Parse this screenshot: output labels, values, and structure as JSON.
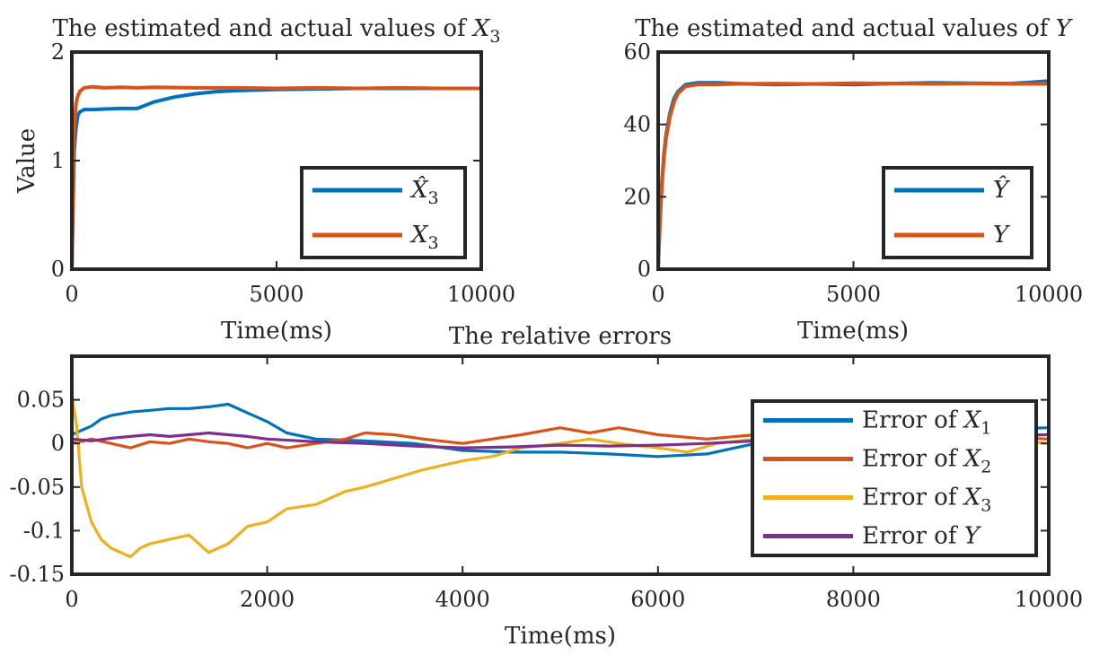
{
  "chart_data": [
    {
      "type": "line",
      "title_text": "The estimated and actual values of ",
      "title_var": "X",
      "title_sub": "3",
      "xlabel": "Time(ms)",
      "ylabel": "Value",
      "xlim": [
        0,
        10000
      ],
      "ylim": [
        0,
        2
      ],
      "xticks": [
        "0",
        "5000",
        "10000"
      ],
      "yticks": [
        "0",
        "1",
        "2"
      ],
      "legend_position": "bottom-right",
      "series": [
        {
          "color": "#0072BD",
          "legend_var": "X̂",
          "legend_sub": "3",
          "x": [
            0,
            30,
            60,
            100,
            150,
            200,
            300,
            500,
            800,
            1200,
            1600,
            2000,
            2500,
            3000,
            3500,
            4000,
            5000,
            6000,
            7000,
            8000,
            9000,
            10000
          ],
          "y": [
            0,
            0.6,
            1.1,
            1.3,
            1.42,
            1.45,
            1.47,
            1.47,
            1.475,
            1.48,
            1.48,
            1.54,
            1.585,
            1.615,
            1.635,
            1.645,
            1.655,
            1.66,
            1.665,
            1.665,
            1.665,
            1.665
          ]
        },
        {
          "color": "#D95319",
          "legend_var": "X",
          "legend_sub": "3",
          "x": [
            0,
            30,
            60,
            100,
            150,
            200,
            300,
            500,
            800,
            1200,
            1600,
            2000,
            3000,
            4000,
            5000,
            6000,
            7000,
            8000,
            9000,
            10000
          ],
          "y": [
            0,
            0.8,
            1.3,
            1.52,
            1.6,
            1.64,
            1.67,
            1.68,
            1.67,
            1.675,
            1.67,
            1.675,
            1.67,
            1.67,
            1.665,
            1.67,
            1.665,
            1.67,
            1.665,
            1.665
          ]
        }
      ]
    },
    {
      "type": "line",
      "title_text": "The estimated and actual values of ",
      "title_var": "Y",
      "title_sub": "",
      "xlabel": "Time(ms)",
      "ylabel": "",
      "xlim": [
        0,
        10000
      ],
      "ylim": [
        0,
        60
      ],
      "xticks": [
        "0",
        "5000",
        "10000"
      ],
      "yticks": [
        "0",
        "20",
        "40",
        "60"
      ],
      "legend_position": "bottom-right",
      "series": [
        {
          "color": "#0072BD",
          "legend_var": "Ŷ",
          "legend_sub": "",
          "x": [
            0,
            50,
            100,
            150,
            200,
            300,
            400,
            500,
            700,
            1000,
            1500,
            2000,
            3000,
            4000,
            5000,
            6000,
            7000,
            8000,
            9000,
            9500,
            10000
          ],
          "y": [
            0,
            15,
            25,
            32,
            37,
            43,
            47,
            49,
            51,
            51.5,
            51.5,
            51.3,
            51,
            51.2,
            51,
            51.3,
            51.5,
            51.4,
            51.3,
            51.6,
            52
          ]
        },
        {
          "color": "#D95319",
          "legend_var": "Y",
          "legend_sub": "",
          "x": [
            0,
            50,
            100,
            150,
            200,
            300,
            400,
            500,
            700,
            1000,
            1500,
            2000,
            3000,
            4000,
            5000,
            6000,
            7000,
            8000,
            9000,
            10000
          ],
          "y": [
            0,
            14,
            24,
            31,
            36,
            42,
            46,
            48.5,
            50.5,
            51,
            51,
            51.2,
            51.3,
            51.2,
            51.4,
            51.3,
            51.2,
            51.3,
            51.2,
            51.2
          ]
        }
      ]
    },
    {
      "type": "line",
      "title_text": "The relative errors",
      "title_var": "",
      "title_sub": "",
      "xlabel": "Time(ms)",
      "ylabel": "",
      "xlim": [
        0,
        10000
      ],
      "ylim": [
        -0.15,
        0.1
      ],
      "xticks": [
        "0",
        "2000",
        "4000",
        "6000",
        "8000",
        "10000"
      ],
      "yticks": [
        "-0.15",
        "-0.1",
        "-0.05",
        "0",
        "0.05"
      ],
      "ytick_values": [
        -0.15,
        -0.1,
        -0.05,
        0,
        0.05
      ],
      "legend_position": "top-right",
      "series": [
        {
          "color": "#0072BD",
          "legend_text": "Error of ",
          "legend_var": "X",
          "legend_sub": "1",
          "x": [
            0,
            100,
            200,
            300,
            400,
            600,
            800,
            1000,
            1200,
            1400,
            1600,
            1800,
            2000,
            2200,
            2500,
            3000,
            3500,
            4000,
            4500,
            5000,
            5500,
            6000,
            6500,
            7000,
            7500,
            8000,
            9000,
            10000
          ],
          "y": [
            0.01,
            0.015,
            0.02,
            0.028,
            0.032,
            0.036,
            0.038,
            0.04,
            0.04,
            0.042,
            0.045,
            0.035,
            0.025,
            0.012,
            0.005,
            0.003,
            0,
            -0.008,
            -0.01,
            -0.01,
            -0.012,
            -0.015,
            -0.012,
            0,
            0.005,
            0.01,
            0.015,
            0.018
          ]
        },
        {
          "color": "#D95319",
          "legend_text": "Error of ",
          "legend_var": "X",
          "legend_sub": "2",
          "x": [
            0,
            200,
            400,
            600,
            800,
            1000,
            1200,
            1400,
            1600,
            1800,
            2000,
            2200,
            2500,
            2800,
            3000,
            3300,
            3600,
            4000,
            4300,
            4600,
            5000,
            5300,
            5600,
            6000,
            6500,
            7000,
            8000,
            9000,
            10000
          ],
          "y": [
            0,
            0.005,
            0,
            -0.005,
            0.002,
            0,
            0.005,
            0.002,
            0,
            -0.005,
            0,
            -0.005,
            0,
            0.005,
            0.012,
            0.01,
            0.005,
            0,
            0.005,
            0.01,
            0.018,
            0.012,
            0.018,
            0.01,
            0.005,
            0.01,
            0.015,
            0.01,
            0.005
          ]
        },
        {
          "color": "#EDB120",
          "legend_text": "Error of ",
          "legend_var": "X",
          "legend_sub": "3",
          "x": [
            0,
            50,
            100,
            200,
            300,
            400,
            500,
            600,
            700,
            800,
            1000,
            1200,
            1400,
            1600,
            1800,
            2000,
            2200,
            2500,
            2800,
            3000,
            3300,
            3600,
            4000,
            4300,
            4600,
            5000,
            5300,
            5600,
            6000,
            6300,
            6600,
            7000,
            7500,
            8000,
            9000,
            10000
          ],
          "y": [
            0.055,
            0.02,
            -0.05,
            -0.09,
            -0.11,
            -0.12,
            -0.125,
            -0.13,
            -0.12,
            -0.115,
            -0.11,
            -0.105,
            -0.125,
            -0.115,
            -0.095,
            -0.09,
            -0.075,
            -0.07,
            -0.055,
            -0.05,
            -0.04,
            -0.03,
            -0.02,
            -0.015,
            -0.005,
            0,
            0.005,
            0,
            -0.005,
            -0.01,
            0,
            0.005,
            0.01,
            0.015,
            0.01,
            0
          ]
        },
        {
          "color": "#7E2F8E",
          "legend_text": "Error of ",
          "legend_var": "Y",
          "legend_sub": "",
          "x": [
            0,
            200,
            400,
            600,
            800,
            1000,
            1200,
            1400,
            1600,
            1800,
            2000,
            2500,
            3000,
            3500,
            4000,
            4500,
            5000,
            5500,
            6000,
            6500,
            7000,
            8000,
            9000,
            10000
          ],
          "y": [
            0.005,
            0.003,
            0.006,
            0.008,
            0.01,
            0.008,
            0.01,
            0.012,
            0.01,
            0.008,
            0.005,
            0.002,
            0,
            -0.003,
            -0.005,
            -0.004,
            -0.002,
            -0.003,
            -0.002,
            0,
            0.003,
            0.005,
            0.008,
            0.01
          ]
        }
      ]
    }
  ]
}
